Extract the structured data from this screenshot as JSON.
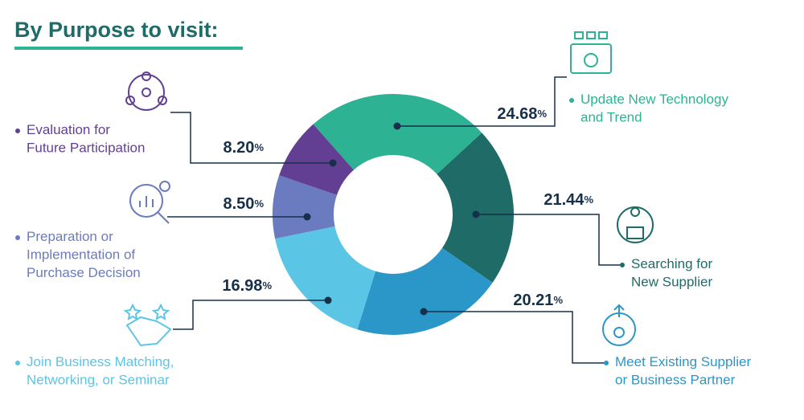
{
  "chart_data": {
    "type": "pie",
    "title": "By Purpose to visit:",
    "categories": [
      "Update New Technology and Trend",
      "Searching for New Supplier",
      "Meet Existing Supplier or Business Partner",
      "Join Business Matching, Networking, or Seminar",
      "Preparation or Implementation of Purchase Decision",
      "Evaluation for Future Participation"
    ],
    "values": [
      24.68,
      21.44,
      20.21,
      16.98,
      8.5,
      8.2
    ],
    "value_labels": [
      "24.68%",
      "21.44%",
      "20.21%",
      "16.98%",
      "8.50%",
      "8.20%"
    ],
    "colors": [
      "#2db393",
      "#1f6b68",
      "#2b96c8",
      "#5bc5e5",
      "#6a7bbf",
      "#633f93"
    ],
    "donut": true
  }
}
